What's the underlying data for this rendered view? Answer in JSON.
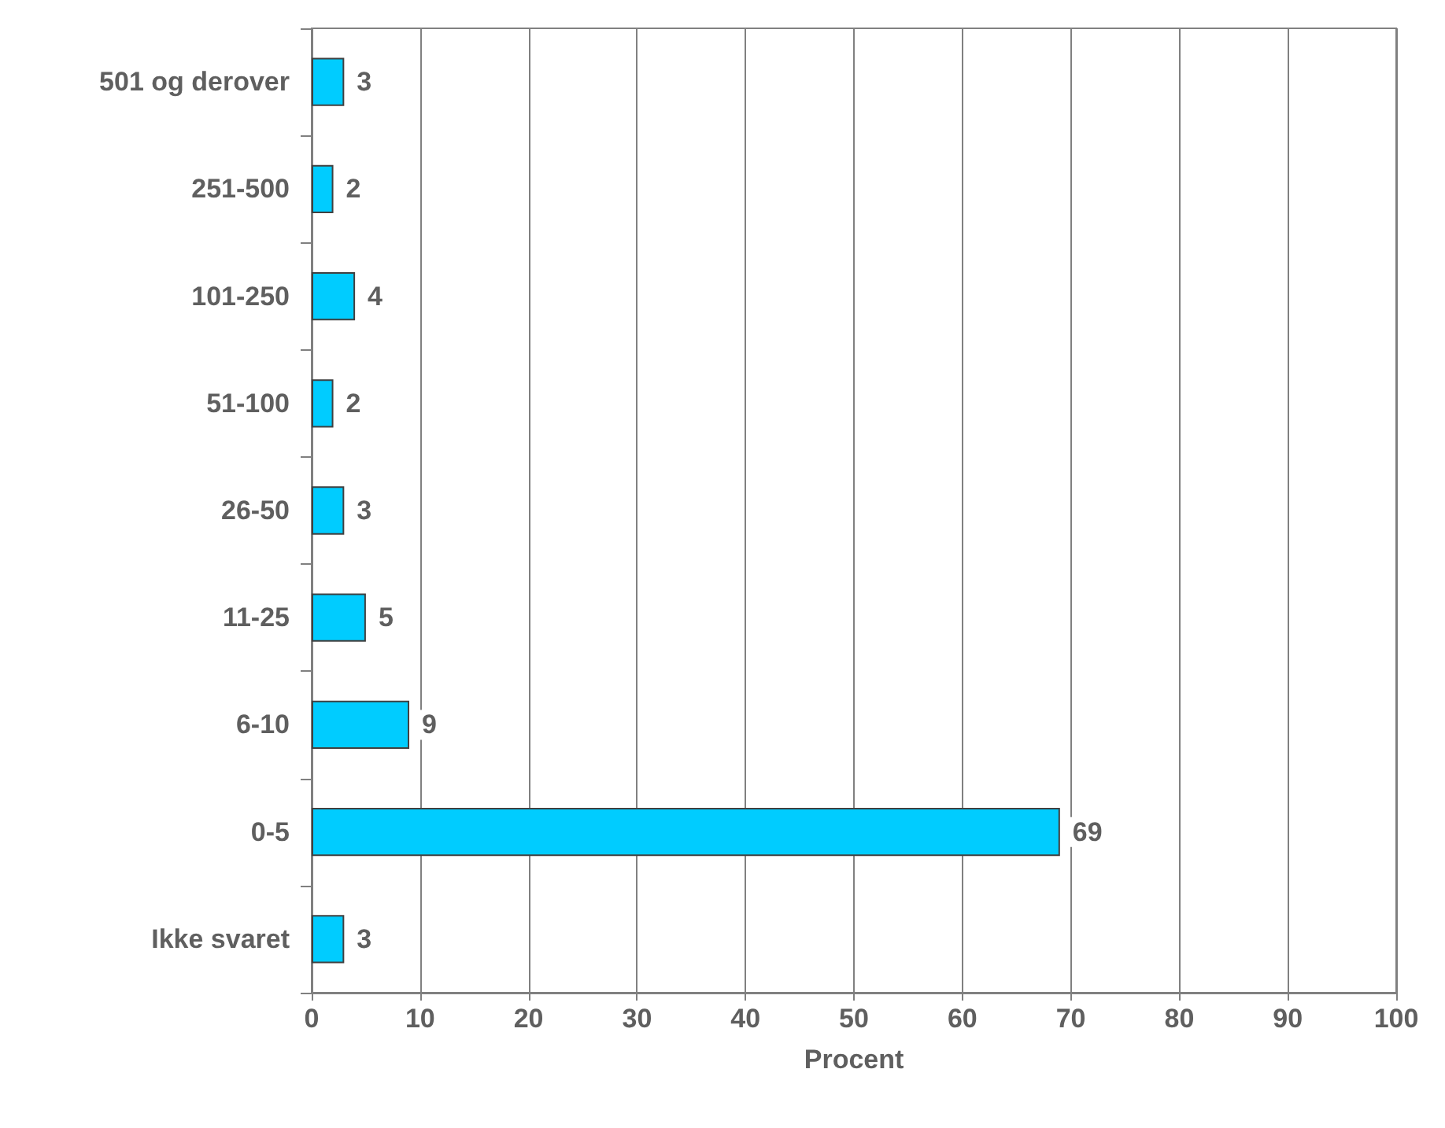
{
  "chart_data": {
    "type": "bar",
    "orientation": "horizontal",
    "categories": [
      "501 og derover",
      "251-500",
      "101-250",
      "51-100",
      "26-50",
      "11-25",
      "6-10",
      "0-5",
      "Ikke svaret"
    ],
    "values": [
      3,
      2,
      4,
      2,
      3,
      5,
      9,
      69,
      3
    ],
    "color": "#00ccff",
    "xlabel": "Procent",
    "xlim": [
      0,
      100
    ],
    "xticks": [
      0,
      10,
      20,
      30,
      40,
      50,
      60,
      70,
      80,
      90,
      100
    ],
    "grid": "x",
    "data_labels": true
  }
}
